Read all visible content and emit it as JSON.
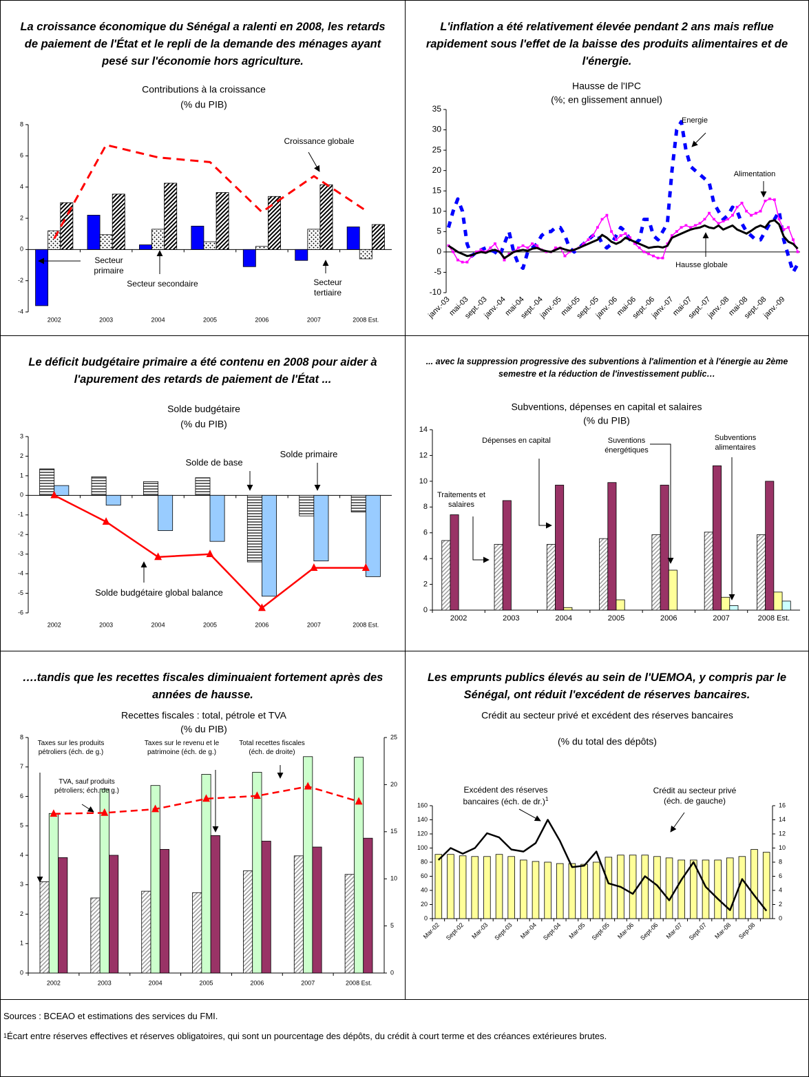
{
  "chart_data": [
    {
      "type": "bar",
      "headline": "La croissance économique du Sénégal a ralenti en 2008, les retards de paiement de l'État et le repli de la demande des ménages ayant pesé sur l'économie hors agriculture.",
      "title": "Contributions à la croissance",
      "subtitle": "(% du PIB)",
      "categories": [
        "2002",
        "2003",
        "2004",
        "2005",
        "2006",
        "2007",
        "2008 Est."
      ],
      "ylim": [
        -4,
        8
      ],
      "yticks": [
        -4,
        -2,
        0,
        2,
        4,
        6,
        8
      ],
      "series": [
        {
          "name": "Secteur primaire",
          "kind": "bar",
          "color": "#0000ff",
          "values": [
            -3.6,
            2.2,
            0.3,
            1.5,
            -1.1,
            -0.7,
            1.45
          ]
        },
        {
          "name": "Secteur secondaire",
          "kind": "bar",
          "color": "#000000",
          "pattern": "dots",
          "values": [
            1.2,
            0.95,
            1.3,
            0.5,
            0.2,
            1.3,
            -0.6
          ]
        },
        {
          "name": "Secteur tertiaire",
          "kind": "bar",
          "color": "#000000",
          "pattern": "diagonal",
          "values": [
            3.0,
            3.55,
            4.25,
            3.65,
            3.4,
            4.15,
            1.6
          ]
        },
        {
          "name": "Croissance globale",
          "kind": "line",
          "color": "#ff0000",
          "dash": true,
          "values": [
            0.7,
            6.7,
            5.9,
            5.6,
            2.4,
            4.7,
            2.5
          ]
        }
      ]
    },
    {
      "type": "line",
      "headline": "L'inflation a été relativement élevée pendant 2 ans mais reflue rapidement sous l'effet de la baisse des produits alimentaires et de l'énergie.",
      "title": "Hausse de l'IPC",
      "subtitle": "(%; en glissement annuel)",
      "categories": [
        "janv.-03",
        null,
        null,
        null,
        "mai-03",
        null,
        null,
        null,
        "sept.-03",
        null,
        null,
        null,
        "janv.-04",
        null,
        null,
        null,
        "mai-04",
        null,
        null,
        null,
        "sept.-04",
        null,
        null,
        null,
        "janv.-05",
        null,
        null,
        null,
        "mai-05",
        null,
        null,
        null,
        "sept.-05",
        null,
        null,
        null,
        "janv.-06",
        null,
        null,
        null,
        "mai-06",
        null,
        null,
        null,
        "sept.-06",
        null,
        null,
        null,
        "janv.-07",
        null,
        null,
        null,
        "mai-07",
        null,
        null,
        null,
        "sept.-07",
        null,
        null,
        null,
        "janv.-08",
        null,
        null,
        null,
        "mai-08",
        null,
        null,
        null,
        "sept.-08",
        null,
        null,
        null,
        "janv.-09",
        null,
        null,
        null
      ],
      "ylim": [
        -10,
        35
      ],
      "yticks": [
        -10,
        -5,
        0,
        5,
        10,
        15,
        20,
        25,
        30,
        35
      ],
      "series": [
        {
          "name": "Energie",
          "kind": "line",
          "color": "#0000ff",
          "dash": true,
          "values": [
            6,
            10,
            13,
            10,
            2,
            -1,
            0,
            0.5,
            1,
            0.5,
            0,
            -1,
            2,
            5,
            0,
            -3,
            -4,
            0,
            1,
            2,
            4,
            5,
            5,
            6,
            6,
            4,
            1,
            0,
            1,
            2,
            3,
            4,
            4.5,
            2,
            1,
            2,
            4,
            6,
            5,
            3,
            2,
            3,
            8,
            8,
            4,
            3,
            5,
            7,
            20,
            30,
            32,
            25,
            21,
            20,
            19,
            18,
            17,
            12,
            10,
            8,
            9,
            11,
            10,
            7,
            5,
            4,
            3,
            3,
            5,
            7,
            8,
            10,
            3,
            -1,
            -5,
            -3
          ]
        },
        {
          "name": "Alimentation",
          "kind": "line",
          "color": "#ff00ff",
          "marker": "square",
          "values": [
            1.5,
            0,
            -2,
            -2.5,
            -2.5,
            -1,
            0,
            0.5,
            0,
            1,
            2,
            0,
            -2,
            -0.5,
            0,
            1,
            1.5,
            1,
            2,
            1.5,
            0.5,
            0,
            0,
            1,
            1,
            -1,
            0,
            0.5,
            1,
            2,
            3,
            4,
            6,
            8,
            9,
            5,
            3,
            4,
            4.5,
            3.5,
            2,
            1,
            0,
            -0.5,
            -1,
            -1.5,
            -1.5,
            2,
            4,
            5,
            6,
            6.5,
            6,
            6.5,
            7,
            8,
            9.5,
            8,
            7,
            7.5,
            8,
            9,
            11,
            12,
            10,
            9,
            9.5,
            10,
            12.5,
            13,
            12.8,
            8,
            5.5,
            6,
            3,
            0
          ]
        },
        {
          "name": "Hausse globale",
          "kind": "line",
          "color": "#000000",
          "values": [
            1.5,
            0.8,
            0,
            -0.5,
            -1,
            -0.8,
            -0.3,
            0,
            -0.2,
            0.3,
            0.5,
            0,
            -1.5,
            -0.8,
            0,
            0.3,
            0.5,
            0.3,
            0.8,
            1,
            0.5,
            0.2,
            0,
            0.5,
            1,
            0.6,
            0.3,
            0.5,
            1,
            1.5,
            2,
            2.5,
            3,
            4.2,
            3.5,
            2.5,
            2,
            2.5,
            3.5,
            3,
            2.5,
            2,
            1.5,
            1,
            1.2,
            1.3,
            1.1,
            1.5,
            3.5,
            4,
            4.5,
            5,
            5.5,
            5.8,
            6,
            6.5,
            6,
            5.8,
            6.5,
            5.5,
            6,
            6.5,
            5.5,
            5,
            4.5,
            5.2,
            6,
            6.5,
            6,
            7.5,
            7.8,
            6.8,
            3.8,
            2.5,
            2,
            0.8
          ]
        }
      ]
    },
    {
      "type": "bar",
      "headline": "Le déficit budgétaire primaire a été contenu en 2008 pour aider à l'apurement des retards de paiement de l'État ...",
      "title": "Solde budgétaire",
      "subtitle": "(% du PIB)",
      "categories": [
        "2002",
        "2003",
        "2004",
        "2005",
        "2006",
        "2007",
        "2008 Est."
      ],
      "ylim": [
        -6,
        3
      ],
      "yticks": [
        -6,
        -5,
        -4,
        -3,
        -2,
        -1,
        0,
        1,
        2,
        3
      ],
      "series": [
        {
          "name": "Solde de base",
          "kind": "bar",
          "color": "#000000",
          "pattern": "horizontal",
          "values": [
            1.35,
            0.95,
            0.7,
            0.9,
            -3.4,
            -1.05,
            -0.85
          ]
        },
        {
          "name": "Solde primaire",
          "kind": "bar",
          "color": "#99ccff",
          "values": [
            0.5,
            -0.5,
            -1.8,
            -2.35,
            -5.15,
            -3.35,
            -4.15
          ]
        },
        {
          "name": "Solde budgétaire global balance",
          "kind": "line",
          "color": "#ff0000",
          "marker": "triangle",
          "values": [
            0,
            -1.35,
            -3.15,
            -3.0,
            -5.75,
            -3.7,
            -3.7
          ]
        }
      ]
    },
    {
      "type": "bar",
      "headline": "... avec la suppression progressive des subventions à l'alimention et à l'énergie au 2ème semestre et la réduction de l'investissement public…",
      "title": "Subventions, dépenses en capital et salaires",
      "subtitle": "(% du PIB)",
      "categories": [
        "2002",
        "2003",
        "2004",
        "2005",
        "2006",
        "2007",
        "2008 Est."
      ],
      "ylim": [
        0,
        14
      ],
      "yticks": [
        0,
        2,
        4,
        6,
        8,
        10,
        12,
        14
      ],
      "series": [
        {
          "name": "Traitements et salaires",
          "kind": "bar",
          "color": "#999999",
          "pattern": "diagonal",
          "values": [
            5.4,
            5.1,
            5.1,
            5.55,
            5.85,
            6.05,
            5.85
          ]
        },
        {
          "name": "Dépenses en capital",
          "kind": "bar",
          "color": "#993366",
          "values": [
            7.4,
            8.5,
            9.7,
            9.9,
            9.7,
            11.2,
            10.0
          ]
        },
        {
          "name": "Suventions énergétiques",
          "kind": "bar",
          "color": "#ffff99",
          "values": [
            null,
            null,
            0.2,
            0.8,
            3.1,
            1.0,
            1.4
          ]
        },
        {
          "name": "Subventions alimentaires",
          "kind": "bar",
          "color": "#ccffff",
          "values": [
            null,
            null,
            null,
            null,
            null,
            0.35,
            0.7
          ]
        }
      ]
    },
    {
      "type": "bar",
      "headline": "….tandis que les recettes fiscales diminuaient fortement après des années de hausse.",
      "title": "Recettes fiscales : total, pétrole et TVA",
      "subtitle": "(% du PIB)",
      "categories": [
        "2002",
        "2003",
        "2004",
        "2005",
        "2006",
        "2007",
        "2008 Est."
      ],
      "ylim": [
        0,
        8
      ],
      "yticks": [
        0,
        1,
        2,
        3,
        4,
        5,
        6,
        7,
        8
      ],
      "y2lim": [
        0,
        25
      ],
      "y2ticks": [
        0,
        5,
        10,
        15,
        20,
        25
      ],
      "series": [
        {
          "name": "Taxes sur les produits pétroliers (éch. de g.)",
          "kind": "bar",
          "color": "#999999",
          "pattern": "diagonal",
          "values": [
            3.1,
            2.55,
            2.78,
            2.73,
            3.47,
            3.98,
            3.35
          ]
        },
        {
          "name": "TVA, sauf produits pétroliers; éch. de g.)",
          "kind": "bar",
          "color": "#ccffcc",
          "values": [
            5.42,
            6.25,
            6.37,
            6.75,
            6.82,
            7.35,
            7.33
          ]
        },
        {
          "name": "Taxes sur le revenu et le patrimoine (éch. de g.)",
          "kind": "bar",
          "color": "#993366",
          "values": [
            3.92,
            4.0,
            4.2,
            4.67,
            4.48,
            4.28,
            4.58
          ]
        },
        {
          "name": "Total  recettes fiscales (éch. de droite)",
          "kind": "line",
          "axis": "y2",
          "color": "#ff0000",
          "dash": true,
          "marker": "triangle",
          "values": [
            16.9,
            17.0,
            17.4,
            18.5,
            18.8,
            19.8,
            18.2
          ]
        }
      ]
    },
    {
      "type": "bar",
      "headline": "Les emprunts publics élevés au sein de l'UEMOA, y compris par le Sénégal, ont réduit l'excédent de réserves bancaires.",
      "title": "Crédit au secteur privé et excédent des réserves bancaires",
      "subtitle": "(% du total des dépôts)",
      "categories": [
        "Mar-02",
        null,
        "Sept-02",
        null,
        "Mar-03",
        null,
        "Sept-03",
        null,
        "Mar-04",
        null,
        "Sept-04",
        null,
        "Mar-05",
        null,
        "Sept-05",
        null,
        "Mar-06",
        null,
        "Sept-06",
        null,
        "Mar-07",
        null,
        "Sept-07",
        null,
        "Mar-08",
        null,
        "Sep-08",
        null
      ],
      "ylim": [
        0,
        160
      ],
      "yticks": [
        0,
        20,
        40,
        60,
        80,
        100,
        120,
        140,
        160
      ],
      "y2lim": [
        0,
        16
      ],
      "y2ticks": [
        0,
        2,
        4,
        6,
        8,
        10,
        12,
        14,
        16
      ],
      "series": [
        {
          "name": "Crédit au secteur privé (éch. de gauche)",
          "kind": "bar",
          "color": "#ffff99",
          "values": [
            91,
            91,
            89,
            88,
            88,
            91,
            88,
            83,
            81,
            80,
            78,
            78,
            77,
            80,
            87,
            90,
            90,
            90,
            88,
            86,
            83,
            83,
            83,
            83,
            86,
            88,
            98,
            94
          ]
        },
        {
          "name": "Excédent des réserves bancaires (éch. de dr.)",
          "note_marker": "1",
          "kind": "line",
          "axis": "y2",
          "color": "#000000",
          "values": [
            8.3,
            10,
            9.2,
            10,
            12.1,
            11.5,
            9.8,
            9.5,
            10.7,
            14,
            11,
            7.3,
            7.5,
            9.5,
            5,
            4.5,
            3.5,
            6,
            4.7,
            2.6,
            5.5,
            8,
            4.5,
            2.8,
            1.2,
            5.6,
            3.3,
            1.1
          ]
        }
      ]
    }
  ],
  "footer": {
    "sources": "Sources : BCEAO et estimations des services du FMI.",
    "note_marker": "1",
    "note": "Écart entre réserves effectives et réserves obligatoires, qui sont un pourcentage des dépôts, du crédit à court terme et des créances extérieures brutes."
  }
}
